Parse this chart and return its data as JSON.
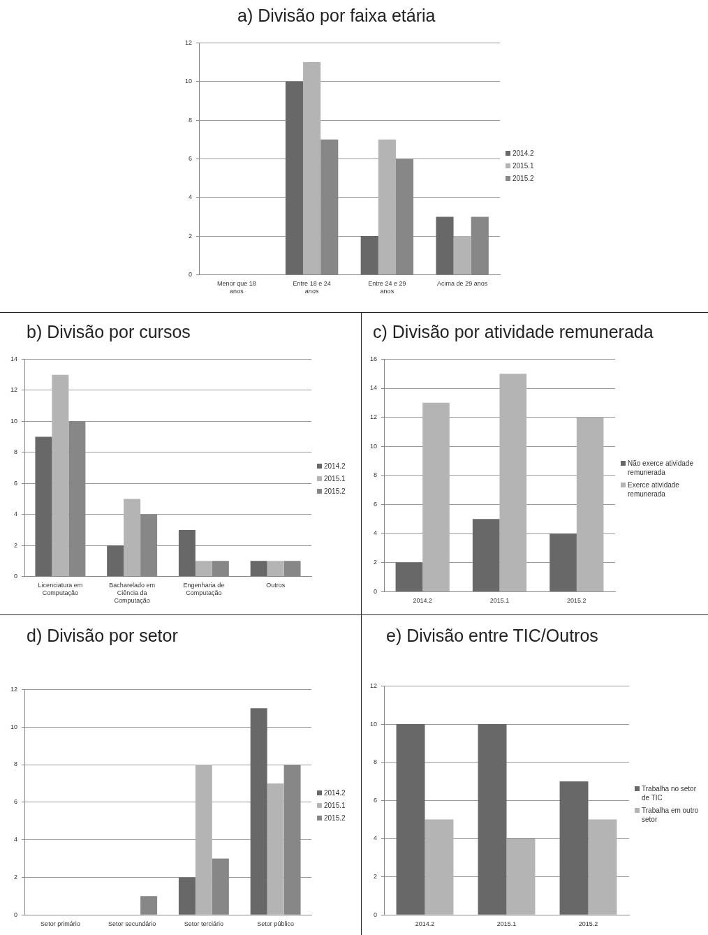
{
  "chart_data": [
    {
      "type": "bar",
      "title": "a) Divisão por faixa etária",
      "categories": [
        "Menor que 18 anos",
        "Entre 18 e 24 anos",
        "Entre 24 e 29 anos",
        "Acima de 29 anos"
      ],
      "series": [
        {
          "name": "2014.2",
          "color": "#686868",
          "values": [
            0,
            10,
            2,
            3
          ]
        },
        {
          "name": "2015.1",
          "color": "#b4b4b4",
          "values": [
            0,
            11,
            7,
            2
          ]
        },
        {
          "name": "2015.2",
          "color": "#878787",
          "values": [
            0,
            7,
            6,
            3
          ]
        }
      ],
      "ylim": [
        0,
        12
      ],
      "yticks": [
        0,
        2,
        4,
        6,
        8,
        10,
        12
      ],
      "grid": "y",
      "legend": "right"
    },
    {
      "type": "bar",
      "title": "b) Divisão por cursos",
      "categories": [
        "Licenciatura em Computação",
        "Bacharelado em Ciência da Computação",
        "Engenharia de Computação",
        "Outros"
      ],
      "series": [
        {
          "name": "2014.2",
          "color": "#686868",
          "values": [
            9,
            2,
            3,
            1
          ]
        },
        {
          "name": "2015.1",
          "color": "#b4b4b4",
          "values": [
            13,
            5,
            1,
            1
          ]
        },
        {
          "name": "2015.2",
          "color": "#878787",
          "values": [
            10,
            4,
            1,
            1
          ]
        }
      ],
      "ylim": [
        0,
        14
      ],
      "yticks": [
        0,
        2,
        4,
        6,
        8,
        10,
        12,
        14
      ],
      "grid": "y",
      "legend": "right"
    },
    {
      "type": "bar",
      "title": "c) Divisão por atividade remunerada",
      "categories": [
        "2014.2",
        "2015.1",
        "2015.2"
      ],
      "series": [
        {
          "name": "Não exerce atividade remunerada",
          "color": "#686868",
          "values": [
            2,
            5,
            4
          ]
        },
        {
          "name": "Exerce atividade remunerada",
          "color": "#b4b4b4",
          "values": [
            13,
            15,
            12
          ]
        }
      ],
      "ylim": [
        0,
        16
      ],
      "yticks": [
        0,
        2,
        4,
        6,
        8,
        10,
        12,
        14,
        16
      ],
      "grid": "y",
      "legend": "right"
    },
    {
      "type": "bar",
      "title": "d) Divisão por setor",
      "categories": [
        "Setor primário",
        "Setor secundário",
        "Setor terciário",
        "Setor público"
      ],
      "series": [
        {
          "name": "2014.2",
          "color": "#686868",
          "values": [
            0,
            0,
            2,
            11
          ]
        },
        {
          "name": "2015.1",
          "color": "#b4b4b4",
          "values": [
            0,
            0,
            8,
            7
          ]
        },
        {
          "name": "2015.2",
          "color": "#878787",
          "values": [
            0,
            1,
            3,
            8
          ]
        }
      ],
      "ylim": [
        0,
        12
      ],
      "yticks": [
        0,
        2,
        4,
        6,
        8,
        10,
        12
      ],
      "grid": "y",
      "legend": "right"
    },
    {
      "type": "bar",
      "title": "e) Divisão entre TIC/Outros",
      "categories": [
        "2014.2",
        "2015.1",
        "2015.2"
      ],
      "series": [
        {
          "name": "Trabalha no setor de TIC",
          "color": "#686868",
          "values": [
            10,
            10,
            7
          ]
        },
        {
          "name": "Trabalha em outro setor",
          "color": "#b4b4b4",
          "values": [
            5,
            4,
            5
          ]
        }
      ],
      "ylim": [
        0,
        12
      ],
      "yticks": [
        0,
        2,
        4,
        6,
        8,
        10,
        12
      ],
      "grid": "y",
      "legend": "right"
    }
  ]
}
